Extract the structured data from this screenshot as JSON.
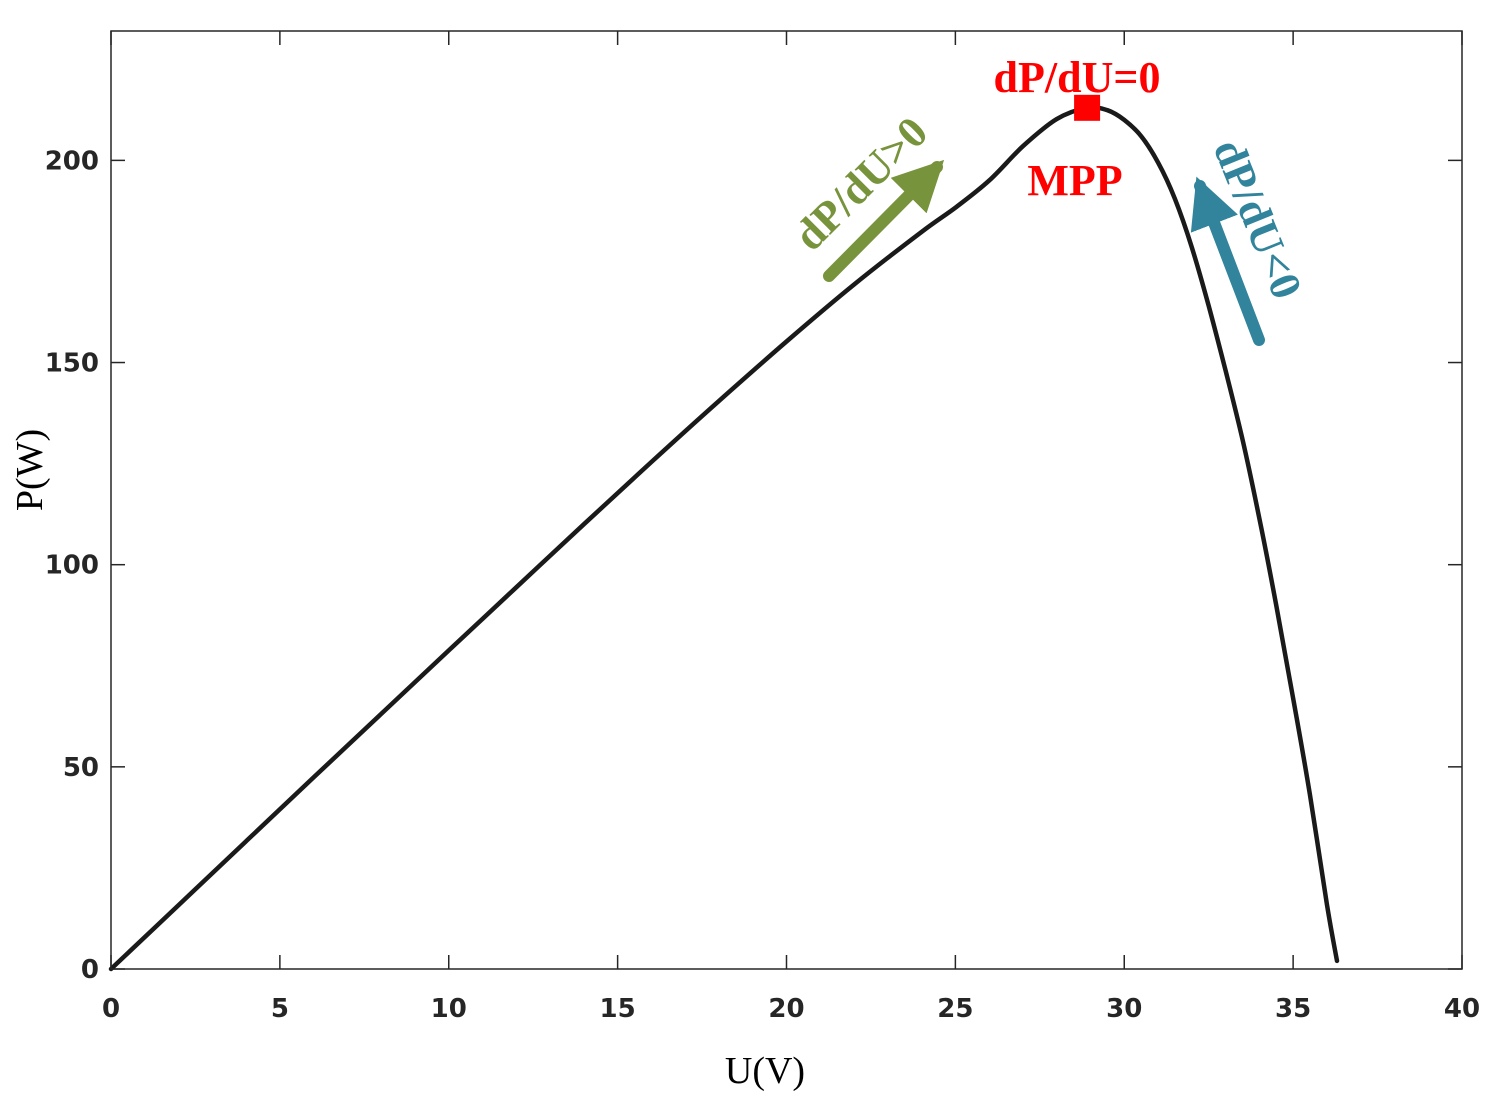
{
  "chart_data": {
    "type": "line",
    "title": "",
    "xlabel": "U(V)",
    "ylabel": "P(W)",
    "xlim": [
      0,
      40
    ],
    "ylim": [
      0,
      232
    ],
    "xticks": [
      0,
      5,
      10,
      15,
      20,
      25,
      30,
      35,
      40
    ],
    "yticks": [
      0,
      50,
      100,
      150,
      200
    ],
    "xtick_labels": [
      "0",
      "5",
      "10",
      "15",
      "20",
      "25",
      "30",
      "35",
      "40"
    ],
    "ytick_labels": [
      "0",
      "50",
      "100",
      "150",
      "200"
    ],
    "grid": false,
    "legend": null,
    "series": [
      {
        "name": "P-U curve",
        "color": "#1a1a1a",
        "x": [
          0,
          2,
          4,
          6,
          8,
          10,
          12,
          14,
          16,
          18,
          20,
          22,
          24,
          25,
          26,
          27,
          28,
          28.9,
          29.5,
          30,
          30.5,
          31,
          31.5,
          32,
          32.5,
          33,
          33.5,
          34,
          34.5,
          35,
          35.5,
          36,
          36.3
        ],
        "y": [
          0,
          15.8,
          31.6,
          47.4,
          63.1,
          78.8,
          94.4,
          110,
          125.4,
          140.5,
          155.2,
          169.3,
          182.3,
          188.3,
          195,
          203.5,
          210.2,
          213,
          212.4,
          210,
          206,
          199.5,
          190.5,
          178.5,
          164,
          148,
          131,
          111.5,
          90,
          67,
          43,
          16,
          2
        ]
      }
    ],
    "annotations": [
      {
        "name": "mpp-marker",
        "text": "",
        "x": 28.9,
        "y": 213,
        "color": "#ff0000"
      },
      {
        "name": "label-dpdu-zero",
        "text": "dP/dU=0",
        "color": "#ff0000"
      },
      {
        "name": "label-mpp",
        "text": "MPP",
        "color": "#ff0000"
      },
      {
        "name": "label-dpdu-positive",
        "text": "dP/dU>0",
        "color": "#77933c"
      },
      {
        "name": "label-dpdu-negative",
        "text": "dP/dU<0",
        "color": "#31849b"
      }
    ]
  }
}
